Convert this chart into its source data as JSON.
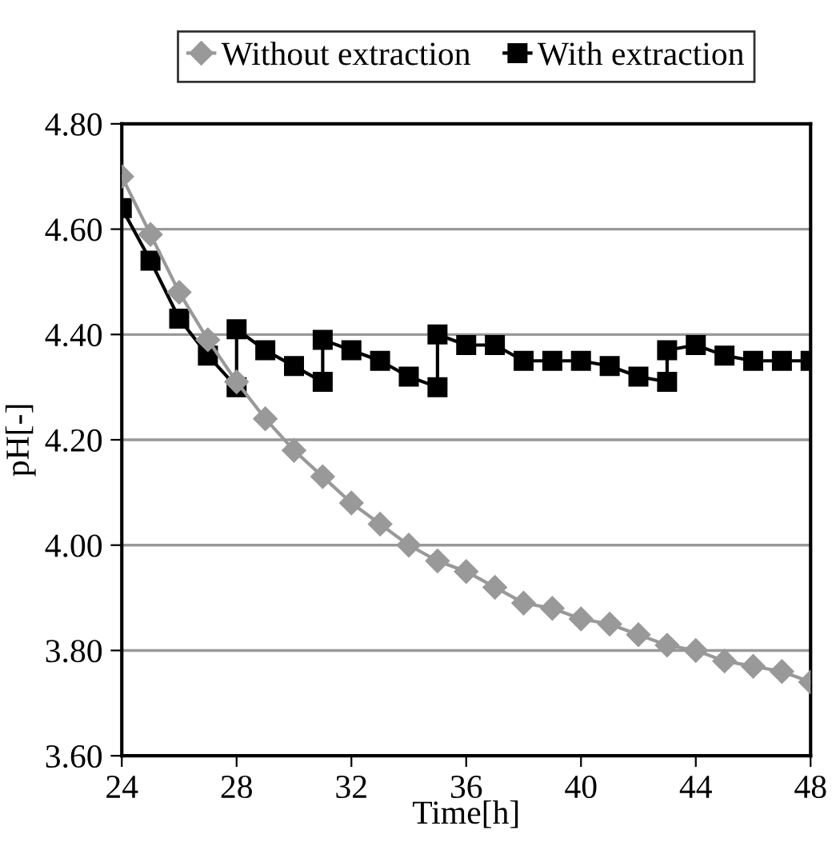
{
  "chart_data": {
    "type": "line",
    "xlabel": "Time[h]",
    "ylabel": "pH[-]",
    "xlim": [
      24,
      48
    ],
    "xticks": [
      24,
      28,
      32,
      36,
      40,
      44,
      48
    ],
    "ylim": [
      3.6,
      4.8
    ],
    "yticks": [
      {
        "value": 3.6,
        "label": "3.60"
      },
      {
        "value": 3.8,
        "label": "3.80"
      },
      {
        "value": 4.0,
        "label": "4.00"
      },
      {
        "value": 4.2,
        "label": "4.20"
      },
      {
        "value": 4.4,
        "label": "4.40"
      },
      {
        "value": 4.6,
        "label": "4.60"
      },
      {
        "value": 4.8,
        "label": "4.80"
      }
    ],
    "grid": "y",
    "legend": "top",
    "series": [
      {
        "name": "Without extraction",
        "color": "#999999",
        "marker": "diamond",
        "x": [
          24,
          25,
          26,
          27,
          28,
          29,
          30,
          31,
          32,
          33,
          34,
          35,
          36,
          37,
          38,
          39,
          40,
          41,
          42,
          43,
          44,
          45,
          46,
          47,
          48
        ],
        "values": [
          4.7,
          4.59,
          4.48,
          4.39,
          4.31,
          4.24,
          4.18,
          4.13,
          4.08,
          4.04,
          4.0,
          3.97,
          3.95,
          3.92,
          3.89,
          3.88,
          3.86,
          3.85,
          3.83,
          3.81,
          3.8,
          3.78,
          3.77,
          3.76,
          3.74
        ]
      },
      {
        "name": "With extraction",
        "color": "#000000",
        "marker": "square",
        "x": [
          24,
          25,
          26,
          27,
          28,
          28,
          29,
          30,
          31,
          31,
          32,
          33,
          34,
          35,
          35,
          36,
          37,
          38,
          39,
          40,
          41,
          42,
          43,
          43,
          44,
          45,
          46,
          47,
          48
        ],
        "values": [
          4.64,
          4.54,
          4.43,
          4.36,
          4.3,
          4.41,
          4.37,
          4.34,
          4.31,
          4.39,
          4.37,
          4.35,
          4.32,
          4.3,
          4.4,
          4.38,
          4.38,
          4.35,
          4.35,
          4.35,
          4.34,
          4.32,
          4.31,
          4.37,
          4.38,
          4.36,
          4.35,
          4.35,
          4.35
        ]
      }
    ]
  }
}
